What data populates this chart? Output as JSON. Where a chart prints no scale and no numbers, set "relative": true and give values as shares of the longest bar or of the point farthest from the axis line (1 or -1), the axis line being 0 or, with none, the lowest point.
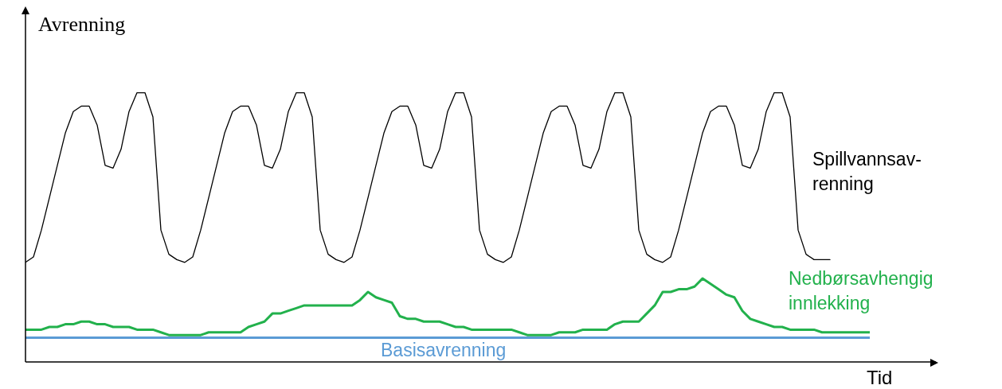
{
  "chart_data": {
    "type": "line",
    "relative": true,
    "ylabel": "Avrenning",
    "xlabel": "Tid",
    "categories": [
      null,
      null,
      null,
      null,
      null,
      null,
      null,
      null,
      null,
      null,
      null,
      null,
      null,
      null,
      null,
      null,
      null,
      null,
      null,
      null,
      null,
      null,
      null,
      null,
      null,
      null,
      null,
      null,
      null,
      null,
      null,
      null,
      null,
      null,
      null,
      null,
      null,
      null,
      null,
      null,
      null,
      null,
      null,
      null,
      null,
      null,
      null,
      null,
      null,
      null,
      null,
      null,
      null,
      null,
      null,
      null,
      null,
      null,
      null,
      null,
      null,
      null,
      null,
      null,
      null,
      null,
      null,
      null,
      null,
      null,
      null,
      null,
      null,
      null,
      null,
      null,
      null,
      null,
      null,
      null,
      null,
      null,
      null,
      null,
      null,
      null,
      null,
      null,
      null,
      null,
      null,
      null,
      null,
      null,
      null,
      null,
      null,
      null,
      null,
      null,
      null,
      null,
      null,
      null,
      null,
      null,
      null
    ],
    "series": [
      {
        "name": "Spillvannsav-renning",
        "color": "#000000",
        "values": [
          0.37,
          0.39,
          0.49,
          0.61,
          0.73,
          0.85,
          0.93,
          0.95,
          0.95,
          0.88,
          0.73,
          0.72,
          0.79,
          0.93,
          1.0,
          1.0,
          0.91,
          0.49,
          0.4,
          0.38,
          0.37,
          0.39,
          0.49,
          0.61,
          0.73,
          0.85,
          0.93,
          0.95,
          0.95,
          0.88,
          0.73,
          0.72,
          0.79,
          0.93,
          1.0,
          1.0,
          0.91,
          0.49,
          0.4,
          0.38,
          0.37,
          0.39,
          0.49,
          0.61,
          0.73,
          0.85,
          0.93,
          0.95,
          0.95,
          0.88,
          0.73,
          0.72,
          0.79,
          0.93,
          1.0,
          1.0,
          0.91,
          0.49,
          0.4,
          0.38,
          0.37,
          0.39,
          0.49,
          0.61,
          0.73,
          0.85,
          0.93,
          0.95,
          0.95,
          0.88,
          0.73,
          0.72,
          0.79,
          0.93,
          1.0,
          1.0,
          0.91,
          0.49,
          0.4,
          0.38,
          0.37,
          0.39,
          0.49,
          0.61,
          0.73,
          0.85,
          0.93,
          0.95,
          0.95,
          0.88,
          0.73,
          0.72,
          0.79,
          0.93,
          1.0,
          1.0,
          0.91,
          0.49,
          0.4,
          0.38,
          0.38,
          0.38,
          null,
          null,
          null,
          null,
          null
        ]
      },
      {
        "name": "Nedbørsavhengig innlekking",
        "color": "#22b14c",
        "values": [
          0.12,
          0.12,
          0.12,
          0.13,
          0.13,
          0.14,
          0.14,
          0.15,
          0.15,
          0.14,
          0.14,
          0.13,
          0.13,
          0.13,
          0.12,
          0.12,
          0.12,
          0.11,
          0.1,
          0.1,
          0.1,
          0.1,
          0.1,
          0.11,
          0.11,
          0.11,
          0.11,
          0.11,
          0.13,
          0.14,
          0.15,
          0.18,
          0.18,
          0.19,
          0.2,
          0.21,
          0.21,
          0.21,
          0.21,
          0.21,
          0.21,
          0.21,
          0.23,
          0.26,
          0.24,
          0.23,
          0.22,
          0.17,
          0.16,
          0.16,
          0.15,
          0.15,
          0.15,
          0.14,
          0.13,
          0.13,
          0.12,
          0.12,
          0.12,
          0.12,
          0.12,
          0.12,
          0.11,
          0.1,
          0.1,
          0.1,
          0.1,
          0.11,
          0.11,
          0.11,
          0.12,
          0.12,
          0.12,
          0.12,
          0.14,
          0.15,
          0.15,
          0.15,
          0.18,
          0.21,
          0.26,
          0.26,
          0.27,
          0.27,
          0.28,
          0.31,
          0.29,
          0.27,
          0.25,
          0.24,
          0.19,
          0.16,
          0.15,
          0.14,
          0.13,
          0.13,
          0.12,
          0.12,
          0.12,
          0.12,
          0.11,
          0.11,
          0.11,
          0.11,
          0.11,
          0.11,
          0.11
        ]
      },
      {
        "name": "Basisavrenning",
        "color": "#5b9bd5",
        "values": [
          0.09,
          0.09,
          0.09,
          0.09,
          0.09,
          0.09,
          0.09,
          0.09,
          0.09,
          0.09,
          0.09,
          0.09,
          0.09,
          0.09,
          0.09,
          0.09,
          0.09,
          0.09,
          0.09,
          0.09,
          0.09,
          0.09,
          0.09,
          0.09,
          0.09,
          0.09,
          0.09,
          0.09,
          0.09,
          0.09,
          0.09,
          0.09,
          0.09,
          0.09,
          0.09,
          0.09,
          0.09,
          0.09,
          0.09,
          0.09,
          0.09,
          0.09,
          0.09,
          0.09,
          0.09,
          0.09,
          0.09,
          0.09,
          0.09,
          0.09,
          0.09,
          0.09,
          0.09,
          0.09,
          0.09,
          0.09,
          0.09,
          0.09,
          0.09,
          0.09,
          0.09,
          0.09,
          0.09,
          0.09,
          0.09,
          0.09,
          0.09,
          0.09,
          0.09,
          0.09,
          0.09,
          0.09,
          0.09,
          0.09,
          0.09,
          0.09,
          0.09,
          0.09,
          0.09,
          0.09,
          0.09,
          0.09,
          0.09,
          0.09,
          0.09,
          0.09,
          0.09,
          0.09,
          0.09,
          0.09,
          0.09,
          0.09,
          0.09,
          0.09,
          0.09,
          0.09,
          0.09,
          0.09,
          0.09,
          0.09,
          0.09,
          0.09,
          0.09,
          0.09,
          0.09,
          0.09,
          0.09
        ]
      }
    ]
  }
}
